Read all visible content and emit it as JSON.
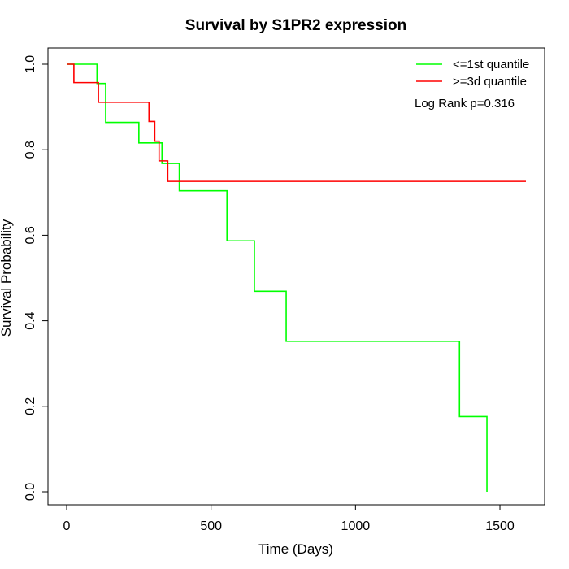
{
  "chart_data": {
    "type": "line",
    "title": "Survival by S1PR2 expression",
    "xlabel": "Time (Days)",
    "ylabel": "Survival Probability",
    "xlim": [
      0,
      1650
    ],
    "ylim": [
      0,
      1.0
    ],
    "xticks": [
      0,
      500,
      1000,
      1500
    ],
    "yticks": [
      0.0,
      0.2,
      0.4,
      0.6,
      0.8,
      1.0
    ],
    "xtick_labels": [
      "0",
      "500",
      "1000",
      "1500"
    ],
    "ytick_labels": [
      "0.0",
      "0.2",
      "0.4",
      "0.6",
      "0.8",
      "1.0"
    ],
    "legend_position": "top-right",
    "annotation": "Log Rank p=0.316",
    "series": [
      {
        "name": "<=1st quantile",
        "color": "#00ff00",
        "step": true,
        "x": [
          0,
          105,
          135,
          250,
          330,
          390,
          555,
          650,
          760,
          1360,
          1455,
          1455
        ],
        "y": [
          1.0,
          0.955,
          0.864,
          0.816,
          0.768,
          0.704,
          0.587,
          0.469,
          0.352,
          0.176,
          0.176,
          0.0
        ]
      },
      {
        "name": ">=3d quantile",
        "color": "#ff0000",
        "step": true,
        "x": [
          0,
          25,
          110,
          285,
          305,
          320,
          350,
          1590
        ],
        "y": [
          1.0,
          0.957,
          0.911,
          0.866,
          0.82,
          0.774,
          0.726,
          0.726
        ]
      }
    ]
  }
}
